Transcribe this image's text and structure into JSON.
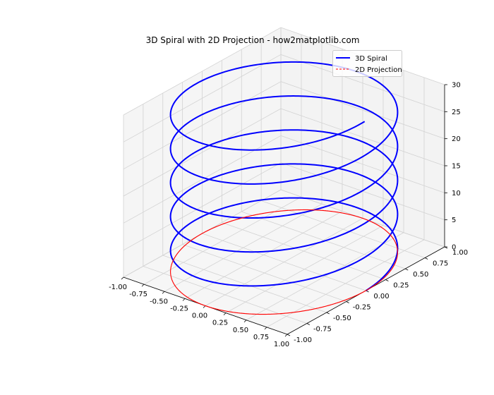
{
  "chart_data": {
    "type": "line",
    "projection": "3d",
    "title": "3D Spiral with 2D Projection - how2matplotlib.com",
    "xlabel": "",
    "ylabel": "",
    "zlabel": "",
    "xlim": [
      -1.0,
      1.0
    ],
    "ylim": [
      -1.0,
      1.0
    ],
    "zlim": [
      0,
      30
    ],
    "xticks": [
      "-1.00",
      "-0.75",
      "-0.50",
      "-0.25",
      "0.00",
      "0.25",
      "0.50",
      "0.75",
      "1.00"
    ],
    "yticks": [
      "-1.00",
      "-0.75",
      "-0.50",
      "-0.25",
      "0.00",
      "0.25",
      "0.50",
      "0.75",
      "1.00"
    ],
    "zticks": [
      "0",
      "5",
      "10",
      "15",
      "20",
      "25",
      "30"
    ],
    "grid": true,
    "legend_position": "upper-right",
    "series": [
      {
        "name": "3D Spiral",
        "color": "#0000ff",
        "style": "solid",
        "x": "cos(t)",
        "y": "sin(t)",
        "z": "t",
        "t_range": [
          0,
          31.4
        ]
      },
      {
        "name": "2D Projection",
        "color": "#ff0000",
        "style": "dashed",
        "x": "cos(t)",
        "y": "sin(t)",
        "z": 0,
        "t_range": [
          0,
          31.4
        ]
      }
    ]
  }
}
